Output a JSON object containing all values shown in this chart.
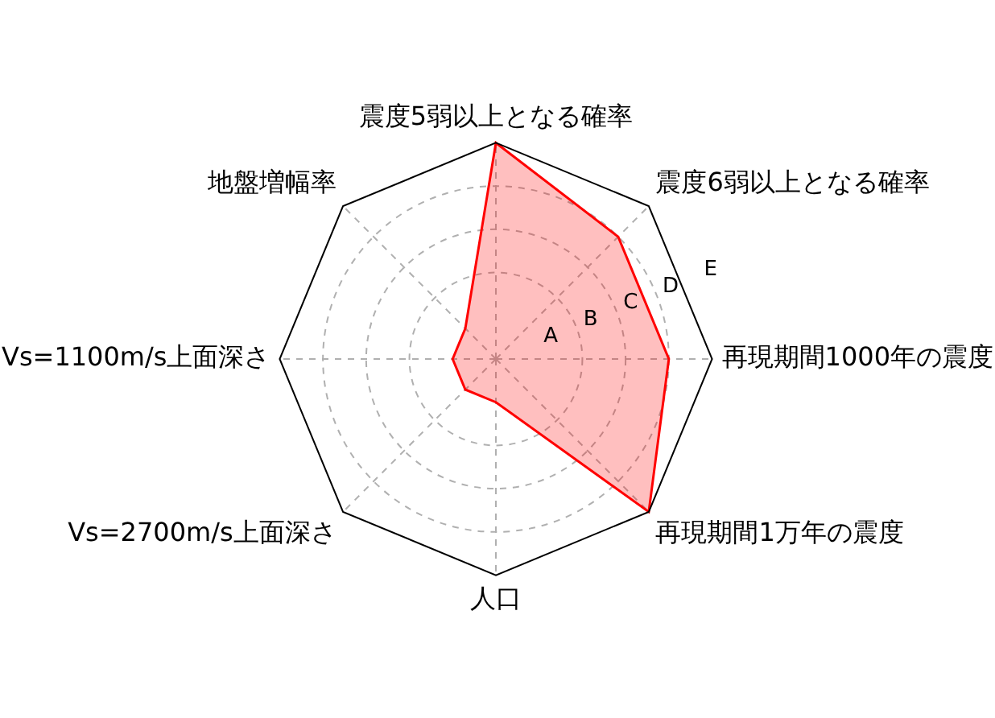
{
  "chart_data": {
    "type": "radar",
    "categories": [
      "震度5弱以上となる確率",
      "震度6弱以上となる確率",
      "再現期間1000年の震度",
      "再現期間1万年の震度",
      "人口",
      "Vs=2700m/s上面深さ",
      "Vs=1100m/s上面深さ",
      "地盤増幅率"
    ],
    "series": [
      {
        "color": "#ff0000",
        "values": [
          5,
          4,
          4,
          5,
          1,
          1,
          1,
          1
        ]
      }
    ],
    "ylim": [
      0,
      5
    ],
    "yticks": [
      {
        "value": 1,
        "label": "A"
      },
      {
        "value": 2,
        "label": "B"
      },
      {
        "value": 3,
        "label": "C"
      },
      {
        "value": 4,
        "label": "D"
      },
      {
        "value": 5,
        "label": "E"
      }
    ],
    "grid": true
  }
}
